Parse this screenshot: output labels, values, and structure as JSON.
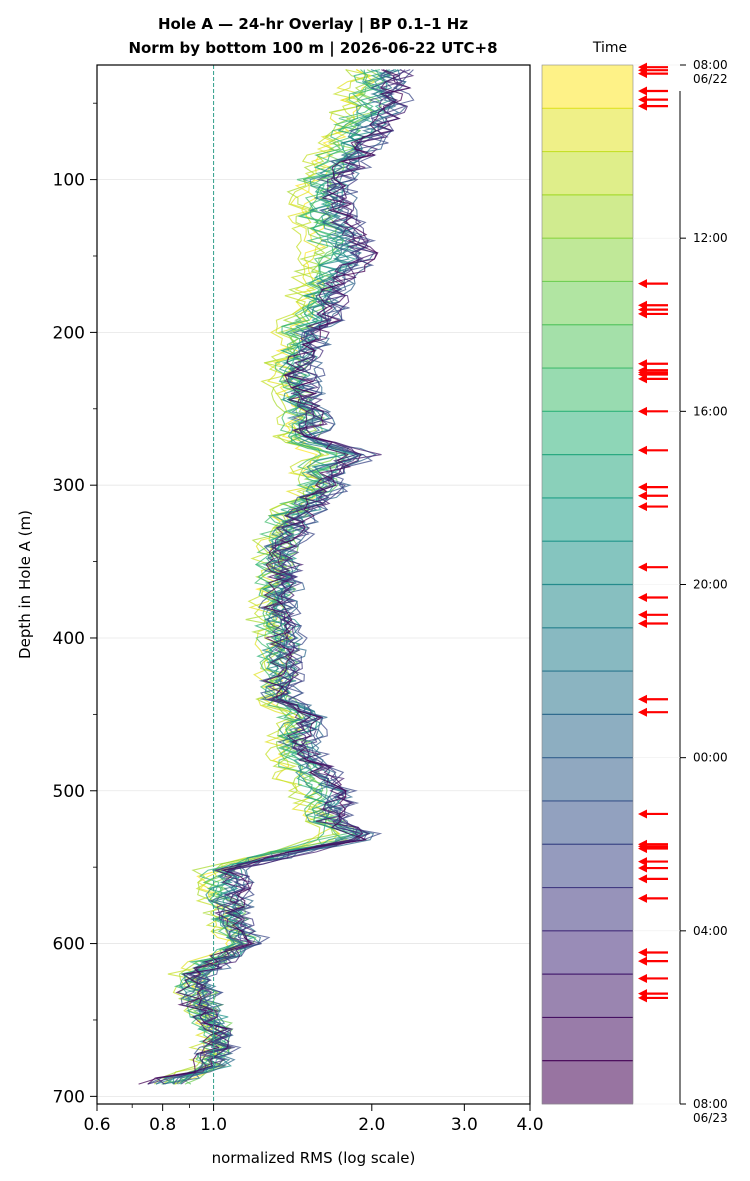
{
  "chart_data": {
    "type": "line",
    "title": "Hole A — 24-hr Overlay  |  BP 0.1–1 Hz",
    "subtitle": "Norm by bottom 100 m  |  2026-06-22 UTC+8",
    "xlabel": "normalized RMS  (log scale)",
    "ylabel": "Depth in Hole A (m)",
    "xscale": "log",
    "xlim": [
      0.6,
      4.0
    ],
    "ylim": [
      705,
      25
    ],
    "x_ticks": [
      "0.6",
      "0.8",
      "1.0",
      "2.0",
      "3.0",
      "4.0"
    ],
    "x_tick_values": [
      0.6,
      0.8,
      1.0,
      2.0,
      3.0,
      4.0
    ],
    "y_ticks": [
      "100",
      "200",
      "300",
      "400",
      "500",
      "600",
      "700"
    ],
    "y_tick_values": [
      100,
      200,
      300,
      400,
      500,
      600,
      700
    ],
    "grid": "horizontal",
    "reference_line_x": 1.0,
    "series_count": 24,
    "colormap": "viridis",
    "profile": {
      "depth": [
        30,
        50,
        70,
        90,
        100,
        120,
        150,
        170,
        190,
        200,
        230,
        260,
        270,
        280,
        290,
        300,
        320,
        340,
        360,
        380,
        400,
        420,
        440,
        450,
        470,
        490,
        500,
        520,
        530,
        540,
        550,
        560,
        580,
        600,
        620,
        640,
        660,
        680,
        690
      ],
      "x_late": [
        2.3,
        2.3,
        2.1,
        1.9,
        1.8,
        1.8,
        2.0,
        1.75,
        1.7,
        1.6,
        1.5,
        1.6,
        1.55,
        2.0,
        1.7,
        1.7,
        1.5,
        1.4,
        1.4,
        1.35,
        1.4,
        1.4,
        1.35,
        1.6,
        1.5,
        1.7,
        1.8,
        1.7,
        2.1,
        1.5,
        1.1,
        1.15,
        1.1,
        1.2,
        0.95,
        0.95,
        1.05,
        1.0,
        0.8
      ],
      "x_early": [
        1.9,
        1.8,
        1.7,
        1.6,
        1.5,
        1.5,
        1.55,
        1.5,
        1.45,
        1.4,
        1.35,
        1.45,
        1.4,
        1.6,
        1.5,
        1.55,
        1.35,
        1.3,
        1.3,
        1.25,
        1.3,
        1.3,
        1.3,
        1.4,
        1.35,
        1.4,
        1.45,
        1.6,
        1.7,
        1.3,
        1.0,
        0.95,
        1.05,
        1.1,
        0.9,
        0.95,
        1.0,
        1.0,
        0.85
      ]
    },
    "colorbar": {
      "title": "Time",
      "ticks": [
        "08:00\n06/22",
        "12:00",
        "16:00",
        "20:00",
        "00:00",
        "04:00",
        "08:00\n06/23"
      ],
      "tick_hours": [
        0,
        4,
        8,
        12,
        16,
        20,
        24
      ],
      "bins": 24
    },
    "arrow_color": "#ff0000",
    "event_hours": [
      0.05,
      0.12,
      0.2,
      0.6,
      0.8,
      0.95,
      5.05,
      5.55,
      5.65,
      5.75,
      6.9,
      7.05,
      7.1,
      7.15,
      7.25,
      8.0,
      8.9,
      9.75,
      9.95,
      10.2,
      11.6,
      12.3,
      12.7,
      12.9,
      14.65,
      14.95,
      17.3,
      18.0,
      18.05,
      18.1,
      18.4,
      18.55,
      18.8,
      19.25,
      20.5,
      20.7,
      21.1,
      21.45,
      21.55
    ]
  }
}
